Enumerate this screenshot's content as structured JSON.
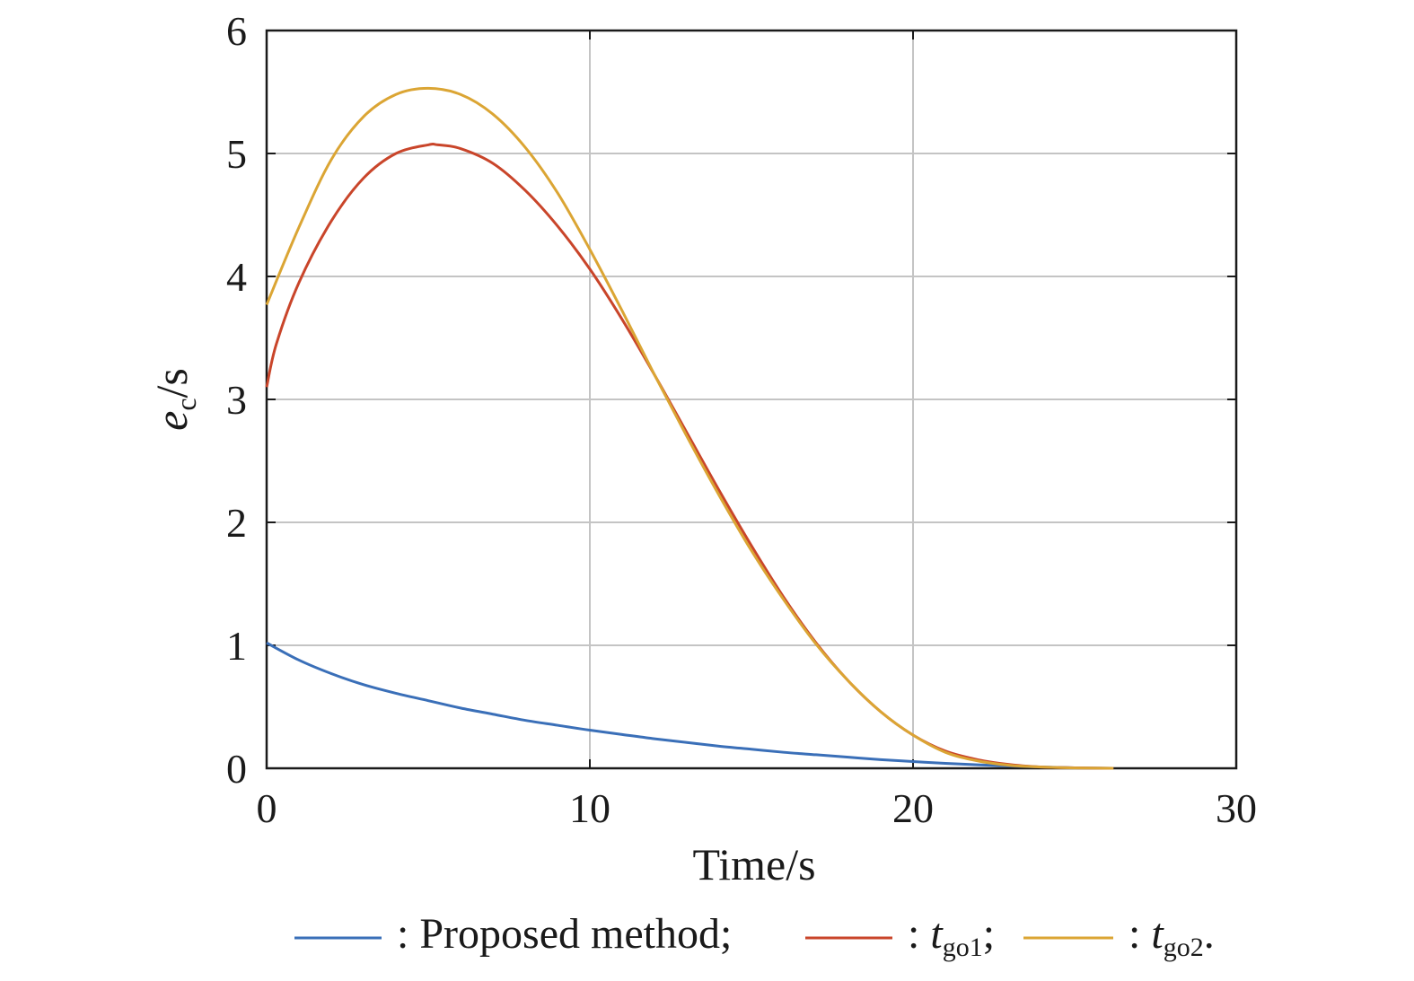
{
  "chart_data": {
    "type": "line",
    "xlabel": "Time/s",
    "ylabel": {
      "main": "e",
      "sub": "c",
      "unit": "/s"
    },
    "xlim": [
      0,
      30
    ],
    "ylim": [
      0,
      6
    ],
    "xticks": [
      "0",
      "10",
      "20",
      "30"
    ],
    "yticks": [
      "0",
      "1",
      "2",
      "3",
      "4",
      "5",
      "6"
    ],
    "grid": true,
    "legend_position": "bottom",
    "series": [
      {
        "name": ": Proposed method;",
        "color": "#3a6fb8",
        "x": [
          0,
          1,
          2,
          3,
          4,
          5,
          6,
          7,
          8,
          9,
          10,
          11,
          12,
          13,
          14,
          15,
          16,
          17,
          18,
          19,
          20,
          21,
          22,
          23,
          24,
          25,
          26.2
        ],
        "y": [
          1.02,
          0.88,
          0.77,
          0.68,
          0.61,
          0.55,
          0.49,
          0.44,
          0.39,
          0.35,
          0.31,
          0.275,
          0.24,
          0.21,
          0.18,
          0.155,
          0.13,
          0.11,
          0.09,
          0.07,
          0.055,
          0.04,
          0.028,
          0.018,
          0.01,
          0.004,
          0.0
        ]
      },
      {
        "name": ": tgo1;",
        "label_main": ": ",
        "label_italic": "t",
        "label_sub": "go1",
        "label_tail": ";",
        "color": "#c9452a",
        "x": [
          0,
          0.3,
          1,
          2,
          3,
          4,
          5,
          5.3,
          6,
          7,
          8,
          9,
          10,
          11,
          12,
          13,
          14,
          15,
          16,
          17,
          18,
          19,
          20,
          21,
          22,
          23,
          24,
          25,
          26.2
        ],
        "y": [
          3.1,
          3.45,
          3.95,
          4.45,
          4.8,
          5.0,
          5.07,
          5.07,
          5.04,
          4.92,
          4.7,
          4.41,
          4.06,
          3.65,
          3.2,
          2.73,
          2.26,
          1.81,
          1.39,
          1.02,
          0.71,
          0.46,
          0.27,
          0.14,
          0.07,
          0.03,
          0.01,
          0.004,
          0.0
        ]
      },
      {
        "name": ": tgo2.",
        "label_main": ": ",
        "label_italic": "t",
        "label_sub": "go2",
        "label_tail": ".",
        "color": "#dba534",
        "x": [
          0,
          1,
          2,
          3,
          4,
          5,
          6,
          7,
          8,
          9,
          10,
          11,
          12,
          13,
          14,
          15,
          16,
          17,
          18,
          19,
          20,
          21,
          22,
          23,
          24,
          25,
          26.2
        ],
        "y": [
          3.77,
          4.4,
          4.95,
          5.3,
          5.48,
          5.53,
          5.48,
          5.32,
          5.05,
          4.68,
          4.22,
          3.72,
          3.2,
          2.7,
          2.22,
          1.77,
          1.37,
          1.01,
          0.71,
          0.46,
          0.27,
          0.13,
          0.06,
          0.024,
          0.01,
          0.003,
          0.0
        ]
      }
    ]
  }
}
